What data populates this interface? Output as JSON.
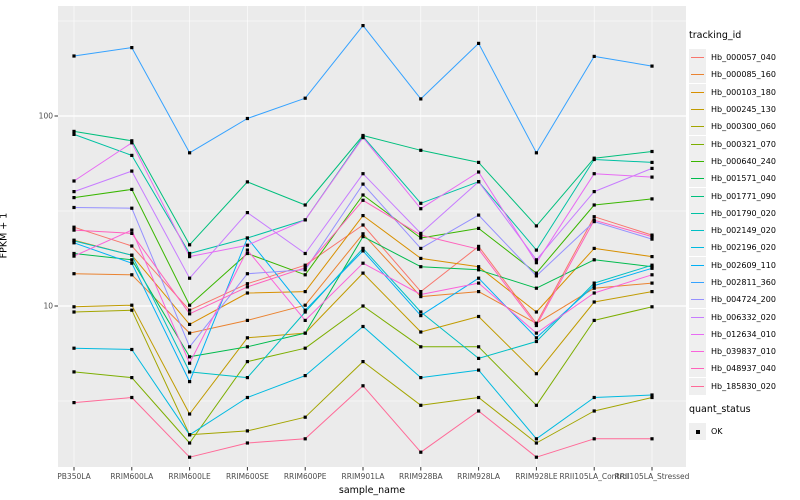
{
  "style": {
    "background": "#FFFFFF",
    "panel_bg": "#EBEBEB",
    "grid_color": "#FFFFFF",
    "axis_text_color": "#4D4D4D",
    "tick_color": "#333333",
    "marker_color": "#000000",
    "legend_key_bg": "#EFEFEF"
  },
  "chart_data": {
    "type": "line",
    "title": "",
    "xlabel": "sample_name",
    "ylabel": "FPKM + 1",
    "yscale": "log10",
    "ylim": [
      1.1,
      380
    ],
    "yticks": [
      10,
      100
    ],
    "ytick_labels": [
      "10",
      "100"
    ],
    "minor_gridlines": [
      3.1623,
      31.623,
      316.23
    ],
    "grid": true,
    "marker": "black-square",
    "legend_position": "right",
    "categories": [
      "PB350LA",
      "RRIM600LA",
      "RRIM600LE",
      "RRIM600SE",
      "RRIM600PE",
      "RRIM901LA",
      "RRIM928BA",
      "RRIM928LA",
      "RRIM928LE",
      "RRII105LA_Control",
      "RRII105LA_Stressed"
    ],
    "legend": {
      "color_title": "tracking_id",
      "shape_title": "quant_status",
      "shape_label": "OK"
    },
    "series": [
      {
        "name": "Hb_000057_040",
        "color": "#F8766D",
        "values": [
          26,
          20.7,
          9.5,
          13.1,
          16.4,
          26.7,
          11.9,
          20.6,
          8.1,
          29.5,
          23.6
        ]
      },
      {
        "name": "Hb_000085_160",
        "color": "#EA8331",
        "values": [
          14.8,
          14.6,
          7.2,
          8.4,
          10.1,
          24,
          11.2,
          11.9,
          8.1,
          12.4,
          13.2
        ]
      },
      {
        "name": "Hb_000103_180",
        "color": "#D89000",
        "values": [
          22.2,
          18.5,
          8,
          11.7,
          11.9,
          29.9,
          17.8,
          16.1,
          9.3,
          20.1,
          18.2
        ]
      },
      {
        "name": "Hb_000245_130",
        "color": "#C09B00",
        "values": [
          9.9,
          10.1,
          2.7,
          6.8,
          7.2,
          14.9,
          7.3,
          8.8,
          4.4,
          10.5,
          11.9
        ]
      },
      {
        "name": "Hb_000300_060",
        "color": "#A3A500",
        "values": [
          9.3,
          9.5,
          2.1,
          2.2,
          2.6,
          5.1,
          3,
          3.3,
          1.9,
          2.8,
          3.3
        ]
      },
      {
        "name": "Hb_000321_070",
        "color": "#7CAE00",
        "values": [
          4.5,
          4.2,
          1.9,
          5.1,
          6,
          10,
          6.1,
          6.1,
          3,
          8.4,
          9.9
        ]
      },
      {
        "name": "Hb_000640_240",
        "color": "#39B600",
        "values": [
          37.2,
          41.1,
          10.1,
          18.9,
          14.6,
          38.4,
          22.8,
          25.6,
          14.9,
          34,
          36.6
        ]
      },
      {
        "name": "Hb_001571_040",
        "color": "#00BB4E",
        "values": [
          18.9,
          17.5,
          5.4,
          6.1,
          7.2,
          23.2,
          16.1,
          15.5,
          12.4,
          17.5,
          16.1
        ]
      },
      {
        "name": "Hb_001771_090",
        "color": "#00BF7D",
        "values": [
          83,
          74,
          21,
          45,
          34,
          79,
          66,
          57,
          26.4,
          60,
          65
        ]
      },
      {
        "name": "Hb_001790_020",
        "color": "#00C1A3",
        "values": [
          80,
          62,
          18.9,
          22.8,
          28.4,
          78,
          34.7,
          45.1,
          19.7,
          59,
          57
        ]
      },
      {
        "name": "Hb_002149_020",
        "color": "#00BFC4",
        "values": [
          22,
          18.5,
          4.5,
          4.2,
          9.3,
          20.1,
          9.3,
          5.3,
          6.5,
          13.2,
          16.4
        ]
      },
      {
        "name": "Hb_002196_020",
        "color": "#00BAE0",
        "values": [
          6,
          5.9,
          2.1,
          3.3,
          4.3,
          7.8,
          4.2,
          4.6,
          2,
          3.3,
          3.4
        ]
      },
      {
        "name": "Hb_002609_110",
        "color": "#00B0F6",
        "values": [
          21.5,
          16.8,
          4,
          22.8,
          9.5,
          19.5,
          8.9,
          14,
          6.8,
          12.8,
          15.8
        ]
      },
      {
        "name": "Hb_002811_360",
        "color": "#35A2FF",
        "values": [
          207,
          229,
          64,
          97,
          124,
          299,
          123,
          241,
          64,
          206,
          183
        ]
      },
      {
        "name": "Hb_004724_200",
        "color": "#9590FF",
        "values": [
          33,
          32.7,
          6.1,
          14.8,
          15.5,
          43.8,
          20.1,
          30.1,
          14.4,
          27.8,
          22.5
        ]
      },
      {
        "name": "Hb_006332_020",
        "color": "#C77CFF",
        "values": [
          40,
          51.3,
          14,
          31,
          18.9,
          49.7,
          24.1,
          45.1,
          17.5,
          40,
          53
        ]
      },
      {
        "name": "Hb_012634_010",
        "color": "#E76BF3",
        "values": [
          45.5,
          72.3,
          18.2,
          20.9,
          28.4,
          77,
          32.5,
          50.7,
          16.9,
          49.7,
          47.7
        ]
      },
      {
        "name": "Hb_039837_010",
        "color": "#FA62DB",
        "values": [
          18.3,
          25.1,
          5,
          19.7,
          8.4,
          16.8,
          11.5,
          13.2,
          7.2,
          11.7,
          14.6
        ]
      },
      {
        "name": "Hb_048937_040",
        "color": "#FF62BC",
        "values": [
          25.1,
          24.1,
          9.1,
          12.6,
          15.9,
          36,
          23.6,
          19.9,
          7.9,
          28.3,
          23.2
        ]
      },
      {
        "name": "Hb_185830_020",
        "color": "#FF6A98",
        "values": [
          3.1,
          3.3,
          1.6,
          1.9,
          2,
          3.8,
          1.7,
          2.8,
          1.6,
          2,
          2
        ]
      }
    ]
  }
}
